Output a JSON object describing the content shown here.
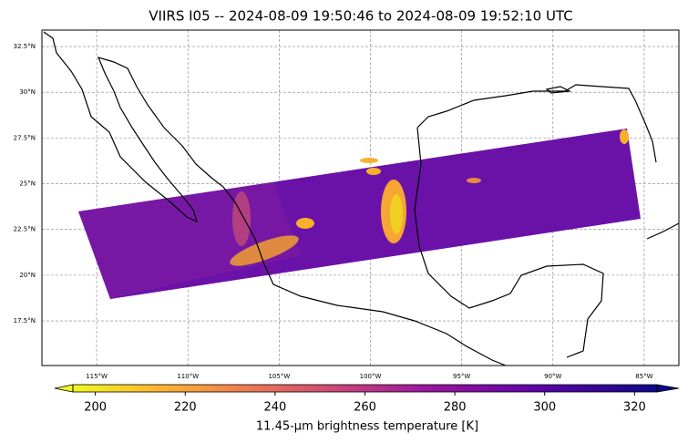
{
  "title": "VIIRS I05 -- 2024-08-09 19:50:46 to 2024-08-09 19:52:10 UTC",
  "map": {
    "lonlim": [
      -118,
      -83.1
    ],
    "latlim": [
      15.06,
      33.4
    ],
    "lon_ticks": [
      {
        "value": -115,
        "label": "115°W"
      },
      {
        "value": -110,
        "label": "110°W"
      },
      {
        "value": -105,
        "label": "105°W"
      },
      {
        "value": -100,
        "label": "100°W"
      },
      {
        "value": -95,
        "label": "95°W"
      },
      {
        "value": -90,
        "label": "90°W"
      },
      {
        "value": -85,
        "label": "85°W"
      }
    ],
    "lat_ticks": [
      {
        "value": 17.5,
        "label": "17.5°N"
      },
      {
        "value": 20,
        "label": "20°N"
      },
      {
        "value": 22.5,
        "label": "22.5°N"
      },
      {
        "value": 25,
        "label": "25°N"
      },
      {
        "value": 27.5,
        "label": "27.5°N"
      },
      {
        "value": 30,
        "label": "30°N"
      },
      {
        "value": 32.5,
        "label": "32.5°N"
      }
    ]
  },
  "colorbar": {
    "label": "11.45-μm brightness temperature [K]",
    "lim": [
      195,
      325
    ],
    "ticks": [
      200,
      220,
      240,
      260,
      280,
      300,
      320
    ]
  }
}
